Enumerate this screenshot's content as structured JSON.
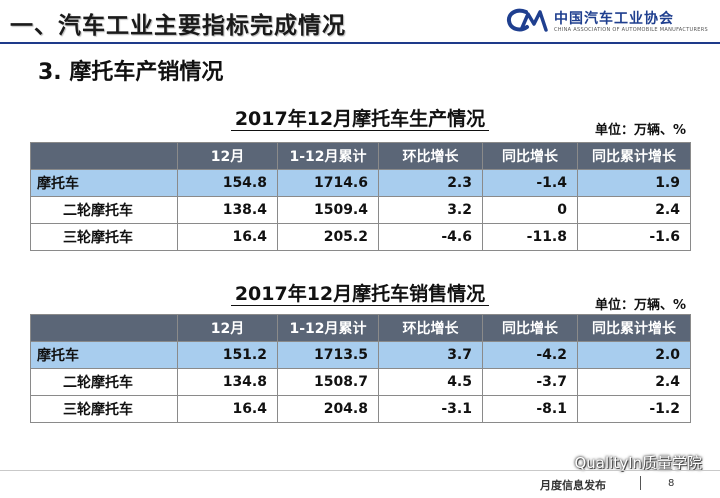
{
  "slide": {
    "title": "一、汽车工业主要指标完成情况",
    "section": "3. 摩托车产销情况"
  },
  "logo": {
    "icon": "caam-logo-icon",
    "cn": "中国汽车工业协会",
    "en": "CHINA ASSOCIATION OF AUTOMOBILE MANUFACTURERS",
    "color": "#1f3f8f"
  },
  "production": {
    "title": "2017年12月摩托车生产情况",
    "unit": "单位：万辆、%",
    "headers": [
      "",
      "12月",
      "1-12月累计",
      "环比增长",
      "同比增长",
      "同比累计增长"
    ],
    "rows": [
      {
        "name": "摩托车",
        "values": [
          "154.8",
          "1714.6",
          "2.3",
          "-1.4",
          "1.9"
        ]
      },
      {
        "name": "二轮摩托车",
        "values": [
          "138.4",
          "1509.4",
          "3.2",
          "0",
          "2.4"
        ]
      },
      {
        "name": "三轮摩托车",
        "values": [
          "16.4",
          "205.2",
          "-4.6",
          "-11.8",
          "-1.6"
        ]
      }
    ]
  },
  "sales": {
    "title": "2017年12月摩托车销售情况",
    "unit": "单位：万辆、%",
    "headers": [
      "",
      "12月",
      "1-12月累计",
      "环比增长",
      "同比增长",
      "同比累计增长"
    ],
    "rows": [
      {
        "name": "摩托车",
        "values": [
          "151.2",
          "1713.5",
          "3.7",
          "-4.2",
          "2.0"
        ]
      },
      {
        "name": "二轮摩托车",
        "values": [
          "134.8",
          "1508.7",
          "4.5",
          "-3.7",
          "2.4"
        ]
      },
      {
        "name": "三轮摩托车",
        "values": [
          "16.4",
          "204.8",
          "-3.1",
          "-8.1",
          "-1.2"
        ]
      }
    ]
  },
  "colors": {
    "header_bg": "#5b6677",
    "highlight_row": "#a8cdee",
    "title_rule": "#1e3a8a"
  },
  "watermark": {
    "icon": "wechat-icon",
    "text": "QualityIn质量学院"
  },
  "footer": {
    "text": "月度信息发布",
    "page": "8"
  }
}
